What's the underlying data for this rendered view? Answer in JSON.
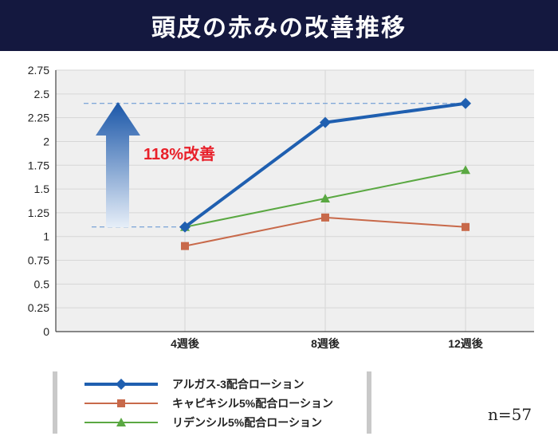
{
  "header": {
    "title": "頭皮の赤みの改善推移"
  },
  "annotation": {
    "improvement_label": "118%改善"
  },
  "sample_size": "n=57",
  "colors": {
    "header_bg": "#14183f",
    "series_1": "#1f5fb0",
    "series_2": "#c8694a",
    "series_3": "#5aa842",
    "annotation_text": "#e8202a"
  },
  "chart_data": {
    "type": "line",
    "title": "頭皮の赤みの改善推移",
    "categories": [
      "4週後",
      "8週後",
      "12週後"
    ],
    "ylim": [
      0,
      2.75
    ],
    "yticks": [
      "0",
      "0.25",
      "0.5",
      "0.75",
      "1",
      "1.25",
      "1.5",
      "1.75",
      "2",
      "2.25",
      "2.5",
      "2.75"
    ],
    "grid": true,
    "series": [
      {
        "name": "アルガス-3配合ローション",
        "values": [
          1.1,
          2.2,
          2.4
        ],
        "marker": "diamond",
        "color": "#1f5fb0"
      },
      {
        "name": "キャピキシル5%配合ローション",
        "values": [
          0.9,
          1.2,
          1.1
        ],
        "marker": "square",
        "color": "#c8694a"
      },
      {
        "name": "リデンシル5%配合ローション",
        "values": [
          1.1,
          1.4,
          1.7
        ],
        "marker": "triangle",
        "color": "#5aa842"
      }
    ],
    "reference_lines": [
      1.1,
      2.4
    ],
    "annotations": [
      "118%改善"
    ]
  }
}
